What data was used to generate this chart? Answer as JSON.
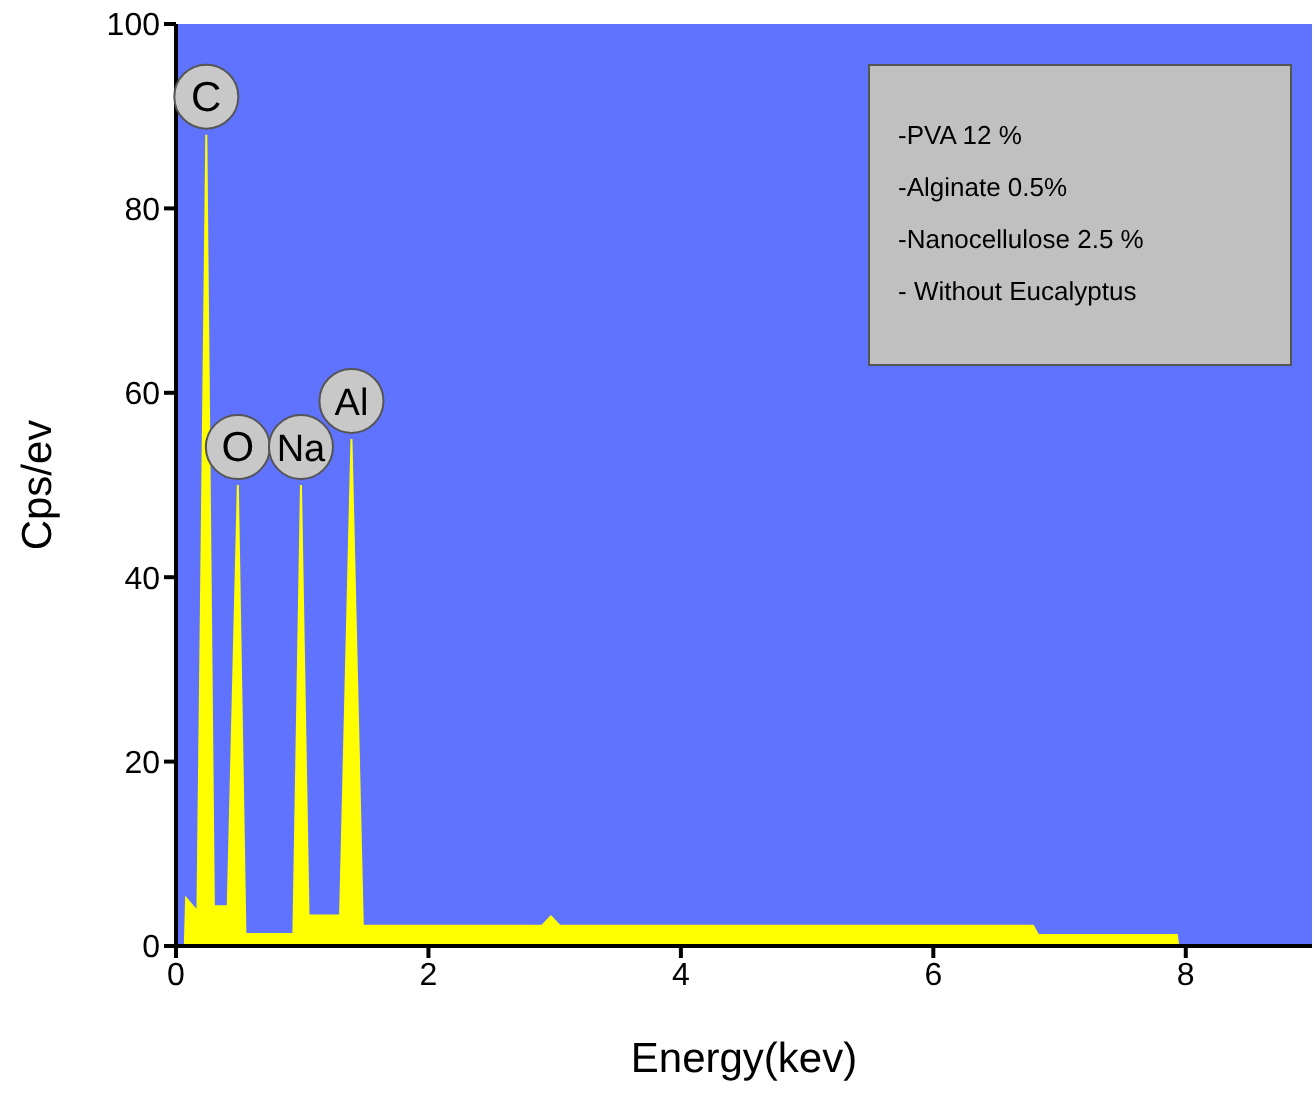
{
  "chart_data": {
    "type": "area",
    "xlabel": "Energy(kev)",
    "ylabel": "Cps/ev",
    "x": [
      0.07,
      0.08,
      0.16,
      0.17,
      0.24,
      0.3,
      0.41,
      0.49,
      0.55,
      0.93,
      0.99,
      1.05,
      1.3,
      1.39,
      1.48,
      2.9,
      2.97,
      3.04,
      6.79,
      6.83,
      7.93,
      7.94
    ],
    "series": [
      {
        "color": "#ffff00",
        "values": [
          0,
          5.2,
          3.9,
          4,
          88,
          4.3,
          4.3,
          50,
          1.3,
          1.3,
          50,
          3.3,
          3.3,
          55,
          2.2,
          2.2,
          3.2,
          2.2,
          2.2,
          1.2,
          1.2,
          0
        ]
      }
    ],
    "xlim": [
      0,
      9
    ],
    "xticks": [
      0,
      2,
      4,
      6,
      8
    ],
    "ylim": [
      0,
      100
    ],
    "yticks": [
      0,
      20,
      40,
      60,
      80,
      100
    ],
    "grid": false,
    "legend": false,
    "annotations": [
      {
        "text": "C",
        "x": 0.24,
        "y": 88
      },
      {
        "text": "O",
        "x": 0.49,
        "y": 50
      },
      {
        "text": "Na",
        "x": 0.99,
        "y": 50
      },
      {
        "text": "Al",
        "x": 1.39,
        "y": 55
      },
      "-PVA 12 %",
      "-Alginate 0.5%",
      "-Nanocellulose 2.5 %",
      "- Without Eucalyptus"
    ]
  }
}
